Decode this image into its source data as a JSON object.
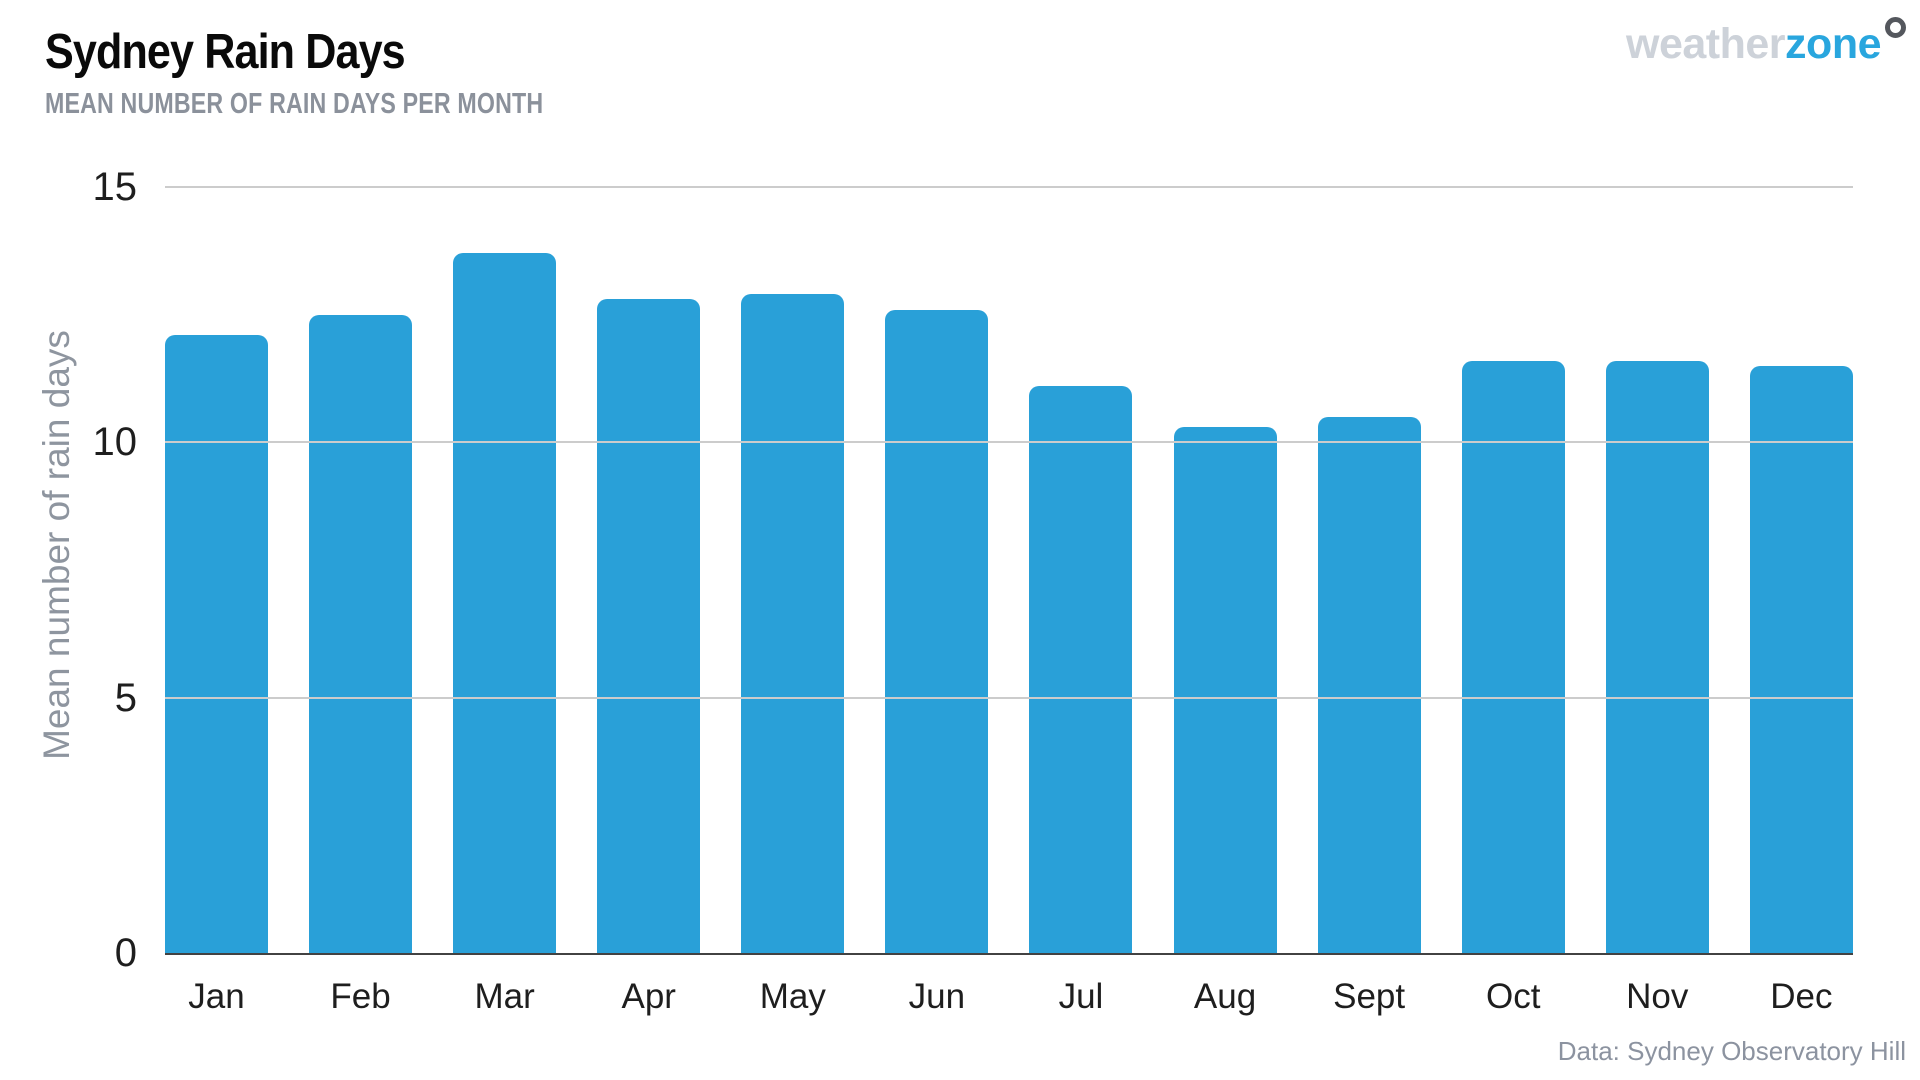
{
  "header": {
    "title": "Sydney Rain Days",
    "subtitle": "MEAN NUMBER OF RAIN DAYS PER MONTH"
  },
  "logo": {
    "weather": "weather",
    "zone": "zone"
  },
  "footer": {
    "source": "Data: Sydney Observatory Hill"
  },
  "colors": {
    "bar": "#29a0d8",
    "logo_weather": "#cdd2d9",
    "logo_zone": "#29a6de",
    "logo_ring": "#54575d",
    "title_text": "#0a0a0a",
    "subtitle_text": "#8b919b",
    "axis_text": "#1e1e1e",
    "muted_text": "#8e959f",
    "gridline": "#cccccc",
    "baseline": "#424242"
  },
  "chart_data": {
    "type": "bar",
    "title": "Sydney Rain Days",
    "subtitle": "MEAN NUMBER OF RAIN DAYS PER MONTH",
    "categories": [
      "Jan",
      "Feb",
      "Mar",
      "Apr",
      "May",
      "Jun",
      "Jul",
      "Aug",
      "Sept",
      "Oct",
      "Nov",
      "Dec"
    ],
    "values": [
      12.1,
      12.5,
      13.7,
      12.8,
      12.9,
      12.6,
      11.1,
      10.3,
      10.5,
      11.6,
      11.6,
      11.5
    ],
    "xlabel": "",
    "ylabel": "Mean number of rain days",
    "ylim": [
      0,
      15
    ],
    "yticks": [
      0,
      5,
      10,
      15
    ],
    "grid": true,
    "legend": null,
    "bar_color": "#29a0d8",
    "source": "Data: Sydney Observatory Hill"
  }
}
